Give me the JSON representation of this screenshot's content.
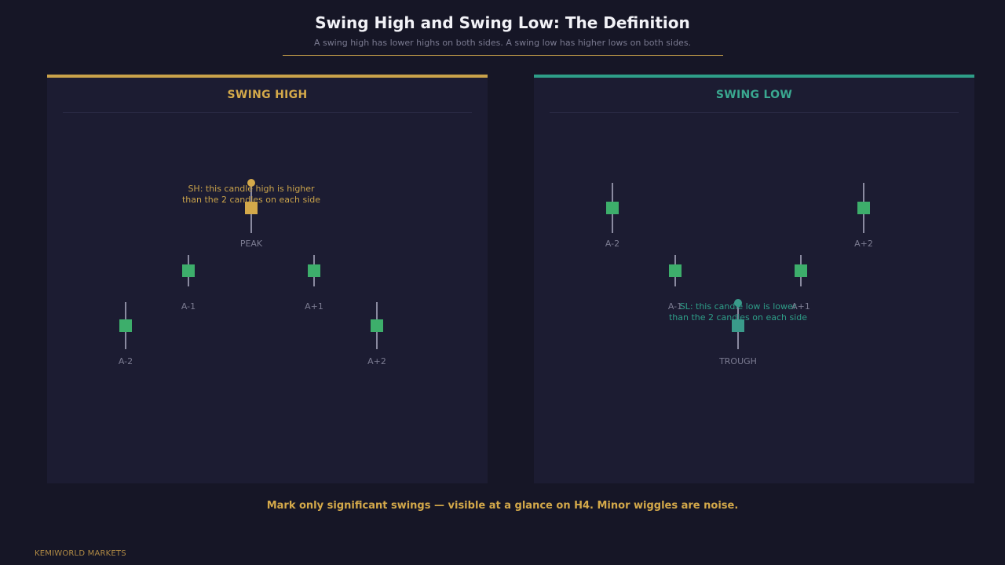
{
  "header": {
    "title": "Swing High and Swing Low: The Definition",
    "subtitle": "A swing high has lower highs on both sides. A swing low has higher lows on both sides."
  },
  "panels": [
    {
      "title": "SWING HIGH",
      "accent": "#c9a24a",
      "candle_color": "#3dae6b",
      "highlight_color": "#d4a94a",
      "labels": {
        "a_minus_2": "A-2",
        "a_minus_1": "A-1",
        "center": "PEAK",
        "a_plus_1": "A+1",
        "a_plus_2": "A+2"
      },
      "annotation": [
        "SH: this candle high is higher",
        "than the 2 candles on each side"
      ]
    },
    {
      "title": "SWING LOW",
      "accent": "#2e9e88",
      "candle_color": "#3dae6b",
      "highlight_color": "#3a9a8a",
      "labels": {
        "a_minus_2": "A-2",
        "a_minus_1": "A-1",
        "center": "TROUGH",
        "a_plus_1": "A+1",
        "a_plus_2": "A+2"
      },
      "annotation": [
        "SL: this candle low is lower",
        "than the 2 candles on each side"
      ]
    }
  ],
  "footer": {
    "note": "Mark only significant swings — visible at a glance on H4. Minor wiggles are noise.",
    "brand": "KEMIWORLD MARKETS"
  }
}
